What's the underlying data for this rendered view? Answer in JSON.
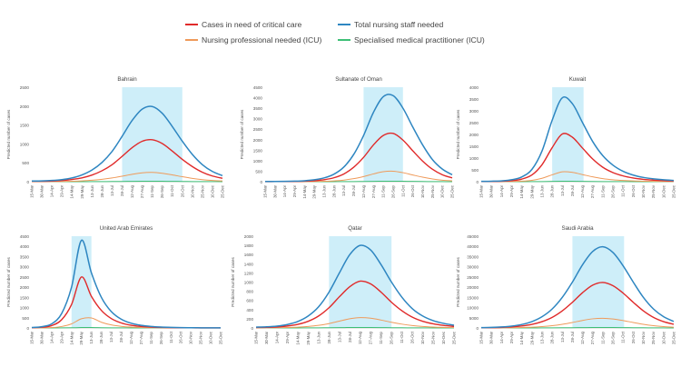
{
  "legend": [
    {
      "key": "critical",
      "label": "Cases in need of critical care",
      "color": "#e02a2a"
    },
    {
      "key": "nursing",
      "label": "Total nursing staff needed",
      "color": "#2e86c1"
    },
    {
      "key": "icu_nurse",
      "label": "Nursing professional needed (ICU)",
      "color": "#ef9a5a"
    },
    {
      "key": "specialist",
      "label": "Specialised medical practitioner (ICU)",
      "color": "#3dbf76"
    }
  ],
  "chart_data": [
    {
      "type": "line",
      "title": "Bahrain",
      "ylabel": "Predicted number of cases",
      "ylim": [
        0,
        2500
      ],
      "yticks": [
        0,
        500,
        1000,
        1500,
        2000,
        2500
      ],
      "x": [
        "15-Mar",
        "30-Mar",
        "14-Apr",
        "29-Apr",
        "14-May",
        "29-May",
        "13-Jun",
        "28-Jun",
        "13-Jul",
        "28-Jul",
        "12-Aug",
        "27-Aug",
        "11-Sep",
        "26-Sep",
        "11-Oct",
        "26-Oct",
        "10-Nov",
        "25-Nov",
        "10-Dec",
        "25-Dec"
      ],
      "highlight": [
        "28-Jul",
        "26-Oct"
      ],
      "series": [
        {
          "name": "Total nursing staff needed",
          "color": "#2e86c1",
          "values": [
            18,
            22,
            32,
            55,
            100,
            180,
            310,
            510,
            800,
            1200,
            1620,
            1920,
            1990,
            1810,
            1460,
            1070,
            720,
            450,
            270,
            160
          ]
        },
        {
          "name": "Cases in need of critical care",
          "color": "#e02a2a",
          "values": [
            10,
            12,
            18,
            32,
            58,
            100,
            175,
            290,
            450,
            670,
            900,
            1070,
            1110,
            1010,
            810,
            590,
            400,
            250,
            150,
            90
          ]
        },
        {
          "name": "Nursing professional needed (ICU)",
          "color": "#ef9a5a",
          "values": [
            2,
            3,
            4,
            7,
            12,
            22,
            38,
            62,
            98,
            145,
            195,
            235,
            245,
            222,
            180,
            131,
            88,
            55,
            33,
            20
          ]
        },
        {
          "name": "Specialised medical practitioner (ICU)",
          "color": "#3dbf76",
          "values": [
            0,
            0,
            0,
            0,
            1,
            1,
            2,
            3,
            5,
            7,
            10,
            12,
            12,
            11,
            9,
            7,
            4,
            3,
            2,
            1
          ]
        }
      ]
    },
    {
      "type": "line",
      "title": "Sultanate of Oman",
      "ylabel": "Predicted number of cases",
      "ylim": [
        0,
        4500
      ],
      "yticks": [
        0,
        500,
        1000,
        1500,
        2000,
        2500,
        3000,
        3500,
        4000,
        4500
      ],
      "x": [
        "15-Mar",
        "30-Mar",
        "14-Apr",
        "29-Apr",
        "14-May",
        "29-May",
        "13-Jun",
        "28-Jun",
        "13-Jul",
        "28-Jul",
        "12-Aug",
        "27-Aug",
        "11-Sep",
        "26-Sep",
        "11-Oct",
        "26-Oct",
        "10-Nov",
        "25-Nov",
        "10-Dec",
        "25-Dec"
      ],
      "highlight": [
        "12-Aug",
        "11-Oct"
      ],
      "series": [
        {
          "name": "Total nursing staff needed",
          "color": "#2e86c1",
          "values": [
            10,
            12,
            16,
            25,
            45,
            90,
            180,
            360,
            700,
            1300,
            2200,
            3300,
            4050,
            4100,
            3500,
            2600,
            1750,
            1050,
            600,
            330
          ]
        },
        {
          "name": "Cases in need of critical care",
          "color": "#e02a2a",
          "values": [
            5,
            6,
            8,
            13,
            24,
            48,
            95,
            190,
            370,
            690,
            1160,
            1750,
            2200,
            2300,
            1980,
            1470,
            980,
            590,
            330,
            180
          ]
        },
        {
          "name": "Nursing professional needed (ICU)",
          "color": "#ef9a5a",
          "values": [
            1,
            1,
            2,
            3,
            5,
            10,
            20,
            40,
            78,
            145,
            245,
            370,
            475,
            500,
            430,
            320,
            215,
            130,
            72,
            40
          ]
        },
        {
          "name": "Specialised medical practitioner (ICU)",
          "color": "#3dbf76",
          "values": [
            0,
            0,
            0,
            0,
            0,
            1,
            1,
            2,
            4,
            7,
            12,
            18,
            23,
            24,
            21,
            16,
            10,
            6,
            3,
            2
          ]
        }
      ]
    },
    {
      "type": "line",
      "title": "Kuwait",
      "ylabel": "Predicted number of cases",
      "ylim": [
        0,
        4000
      ],
      "yticks": [
        0,
        500,
        1000,
        1500,
        2000,
        2500,
        3000,
        3500,
        4000
      ],
      "x": [
        "15-Mar",
        "30-Mar",
        "14-Apr",
        "29-Apr",
        "14-May",
        "29-May",
        "13-Jun",
        "28-Jun",
        "13-Jul",
        "28-Jul",
        "12-Aug",
        "27-Aug",
        "11-Sep",
        "26-Sep",
        "11-Oct",
        "26-Oct",
        "10-Nov",
        "25-Nov",
        "10-Dec",
        "25-Dec"
      ],
      "highlight": [
        "28-Jun",
        "28-Aug"
      ],
      "series": [
        {
          "name": "Total nursing staff needed",
          "color": "#2e86c1",
          "values": [
            15,
            20,
            35,
            80,
            200,
            520,
            1300,
            2600,
            3550,
            3300,
            2500,
            1700,
            1100,
            700,
            440,
            280,
            180,
            120,
            80,
            55
          ]
        },
        {
          "name": "Cases in need of critical care",
          "color": "#e02a2a",
          "values": [
            8,
            11,
            19,
            44,
            110,
            285,
            720,
            1440,
            2020,
            1880,
            1420,
            960,
            610,
            385,
            245,
            155,
            100,
            66,
            44,
            30
          ]
        },
        {
          "name": "Nursing professional needed (ICU)",
          "color": "#ef9a5a",
          "values": [
            2,
            2,
            4,
            9,
            22,
            58,
            145,
            290,
            420,
            395,
            300,
            205,
            130,
            82,
            52,
            33,
            21,
            14,
            9,
            6
          ]
        },
        {
          "name": "Specialised medical practitioner (ICU)",
          "color": "#3dbf76",
          "values": [
            0,
            0,
            0,
            0,
            1,
            3,
            7,
            14,
            20,
            19,
            14,
            10,
            6,
            4,
            3,
            2,
            1,
            1,
            0,
            0
          ]
        }
      ]
    },
    {
      "type": "line",
      "title": "United Arab Emirates",
      "ylabel": "Predicted number of cases",
      "ylim": [
        0,
        4500
      ],
      "yticks": [
        0,
        500,
        1000,
        1500,
        2000,
        2500,
        3000,
        3500,
        4000,
        4500
      ],
      "x": [
        "15-Mar",
        "30-Mar",
        "14-Apr",
        "29-Apr",
        "14-May",
        "29-May",
        "13-Jun",
        "28-Jun",
        "13-Jul",
        "28-Jul",
        "12-Aug",
        "27-Aug",
        "11-Sep",
        "26-Sep",
        "11-Oct",
        "26-Oct",
        "10-Nov",
        "25-Nov",
        "10-Dec",
        "25-Dec"
      ],
      "highlight": [
        "14-May",
        "13-Jun"
      ],
      "series": [
        {
          "name": "Total nursing staff needed",
          "color": "#2e86c1",
          "values": [
            20,
            60,
            200,
            700,
            2000,
            4300,
            2700,
            1500,
            800,
            430,
            230,
            130,
            75,
            45,
            28,
            18,
            12,
            8,
            5,
            3
          ]
        },
        {
          "name": "Cases in need of critical care",
          "color": "#e02a2a",
          "values": [
            12,
            35,
            115,
            400,
            1150,
            2500,
            1550,
            860,
            460,
            245,
            130,
            75,
            43,
            26,
            16,
            10,
            7,
            5,
            3,
            2
          ]
        },
        {
          "name": "Nursing professional needed (ICU)",
          "color": "#ef9a5a",
          "values": [
            2,
            6,
            20,
            70,
            200,
            450,
            490,
            280,
            150,
            80,
            43,
            25,
            14,
            9,
            5,
            3,
            2,
            1,
            1,
            0
          ]
        },
        {
          "name": "Specialised medical practitioner (ICU)",
          "color": "#3dbf76",
          "values": [
            0,
            0,
            1,
            3,
            9,
            20,
            22,
            13,
            7,
            4,
            2,
            1,
            1,
            0,
            0,
            0,
            0,
            0,
            0,
            0
          ]
        }
      ]
    },
    {
      "type": "line",
      "title": "Qatar",
      "ylabel": "Predicted number of cases",
      "ylim": [
        0,
        2000
      ],
      "yticks": [
        0,
        200,
        400,
        600,
        800,
        1000,
        1200,
        1400,
        1600,
        1800,
        2000
      ],
      "x": [
        "15-Mar",
        "30-Mar",
        "14-Apr",
        "29-Apr",
        "14-May",
        "29-May",
        "13-Jun",
        "28-Jun",
        "13-Jul",
        "28-Jul",
        "12-Aug",
        "27-Aug",
        "11-Sep",
        "26-Sep",
        "11-Oct",
        "26-Oct",
        "10-Nov",
        "25-Nov",
        "10-Dec",
        "25-Dec"
      ],
      "highlight": [
        "28-Jun",
        "26-Sep"
      ],
      "series": [
        {
          "name": "Total nursing staff needed",
          "color": "#2e86c1",
          "values": [
            18,
            24,
            40,
            75,
            140,
            260,
            460,
            780,
            1200,
            1600,
            1800,
            1700,
            1380,
            1000,
            670,
            420,
            260,
            160,
            100,
            60
          ]
        },
        {
          "name": "Cases in need of critical care",
          "color": "#e02a2a",
          "values": [
            10,
            13,
            22,
            42,
            78,
            145,
            260,
            440,
            680,
            900,
            1020,
            960,
            780,
            560,
            375,
            235,
            145,
            90,
            55,
            34
          ]
        },
        {
          "name": "Nursing professional needed (ICU)",
          "color": "#ef9a5a",
          "values": [
            2,
            3,
            5,
            9,
            17,
            32,
            56,
            95,
            148,
            200,
            225,
            212,
            172,
            124,
            83,
            52,
            32,
            20,
            12,
            7
          ]
        },
        {
          "name": "Specialised medical practitioner (ICU)",
          "color": "#3dbf76",
          "values": [
            0,
            0,
            0,
            0,
            1,
            2,
            3,
            5,
            7,
            10,
            11,
            10,
            8,
            6,
            4,
            3,
            2,
            1,
            1,
            0
          ]
        }
      ]
    },
    {
      "type": "line",
      "title": "Saudi Arabia",
      "ylabel": "Predicted number of cases",
      "ylim": [
        0,
        45000
      ],
      "yticks": [
        0,
        5000,
        10000,
        15000,
        20000,
        25000,
        30000,
        35000,
        40000,
        45000
      ],
      "x": [
        "15-Mar",
        "30-Mar",
        "14-Apr",
        "29-Apr",
        "14-May",
        "29-May",
        "13-Jun",
        "28-Jun",
        "13-Jul",
        "28-Jul",
        "12-Aug",
        "27-Aug",
        "11-Sep",
        "26-Sep",
        "11-Oct",
        "26-Oct",
        "10-Nov",
        "25-Nov",
        "10-Dec",
        "25-Dec"
      ],
      "highlight": [
        "28-Jul",
        "25-Oct"
      ],
      "series": [
        {
          "name": "Total nursing staff needed",
          "color": "#2e86c1",
          "values": [
            150,
            260,
            480,
            900,
            1700,
            3100,
            5500,
            9300,
            15000,
            22500,
            31000,
            37500,
            39800,
            37000,
            30500,
            22500,
            15000,
            9300,
            5500,
            3200
          ]
        },
        {
          "name": "Cases in need of critical care",
          "color": "#e02a2a",
          "values": [
            85,
            150,
            275,
            510,
            960,
            1750,
            3100,
            5200,
            8400,
            12600,
            17300,
            21000,
            22300,
            20700,
            17100,
            12600,
            8400,
            5200,
            3100,
            1800
          ]
        },
        {
          "name": "Nursing professional needed (ICU)",
          "color": "#ef9a5a",
          "values": [
            18,
            32,
            58,
            108,
            205,
            370,
            660,
            1100,
            1780,
            2680,
            3700,
            4480,
            4750,
            4400,
            3640,
            2680,
            1780,
            1100,
            660,
            380
          ]
        },
        {
          "name": "Specialised medical practitioner (ICU)",
          "color": "#3dbf76",
          "values": [
            1,
            2,
            3,
            5,
            10,
            18,
            32,
            54,
            88,
            132,
            182,
            220,
            234,
            217,
            179,
            132,
            88,
            54,
            32,
            19
          ]
        }
      ]
    }
  ]
}
